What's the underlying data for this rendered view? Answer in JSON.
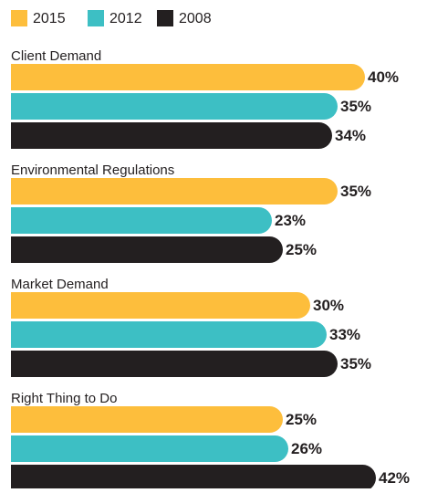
{
  "chart_data": {
    "type": "bar",
    "orientation": "horizontal",
    "categories": [
      "Client Demand",
      "Environmental Regulations",
      "Market Demand",
      "Right Thing to Do"
    ],
    "series": [
      {
        "name": "2015",
        "color": "#fdbe3c",
        "values": [
          40,
          35,
          30,
          25
        ],
        "value_labels": [
          "40%",
          "35%",
          "30%",
          "25%"
        ]
      },
      {
        "name": "2012",
        "color": "#3dbfc4",
        "values": [
          35,
          23,
          33,
          26
        ],
        "value_labels": [
          "35%",
          "23%",
          "33%",
          "26%"
        ]
      },
      {
        "name": "2008",
        "color": "#231f20",
        "values": [
          34,
          25,
          35,
          42
        ],
        "value_labels": [
          "34%",
          "25%",
          "35%",
          "42%"
        ]
      }
    ]
  }
}
